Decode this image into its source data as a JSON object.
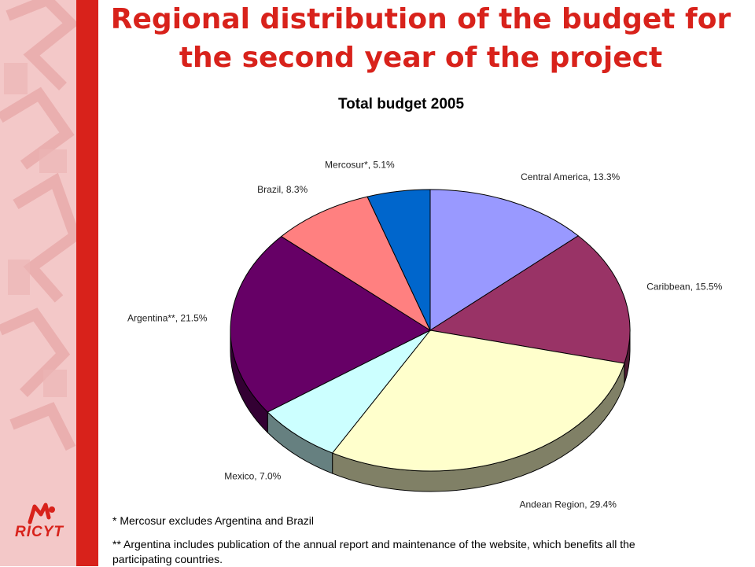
{
  "page": {
    "title": "Regional distribution of the budget for the second year of the project",
    "logo_text": "RICYT"
  },
  "colors": {
    "accent": "#d8221b",
    "sidebar": "#f3c8c8"
  },
  "chart_data": {
    "type": "pie",
    "title": "Total budget 2005",
    "slices": [
      {
        "label": "Central America, 13.3%",
        "value": 13.3,
        "color": "#9999ff"
      },
      {
        "label": "Caribbean, 15.5%",
        "value": 15.5,
        "color": "#993366"
      },
      {
        "label": "Andean Region, 29.4%",
        "value": 29.4,
        "color": "#ffffcc"
      },
      {
        "label": "Mexico, 7.0%",
        "value": 7.0,
        "color": "#ccffff"
      },
      {
        "label": "Argentina**, 21.5%",
        "value": 21.5,
        "color": "#660066"
      },
      {
        "label": "Brazil, 8.3%",
        "value": 8.3,
        "color": "#ff8080"
      },
      {
        "label": "Mercosur*, 5.1%",
        "value": 5.1,
        "color": "#0066cc"
      }
    ],
    "start": "12 o'clock",
    "direction": "clockwise",
    "style": "3d"
  },
  "footnotes": [
    "* Mercosur excludes Argentina and Brazil",
    "** Argentina includes publication of the annual report and maintenance of the website, which benefits all the participating countries."
  ]
}
